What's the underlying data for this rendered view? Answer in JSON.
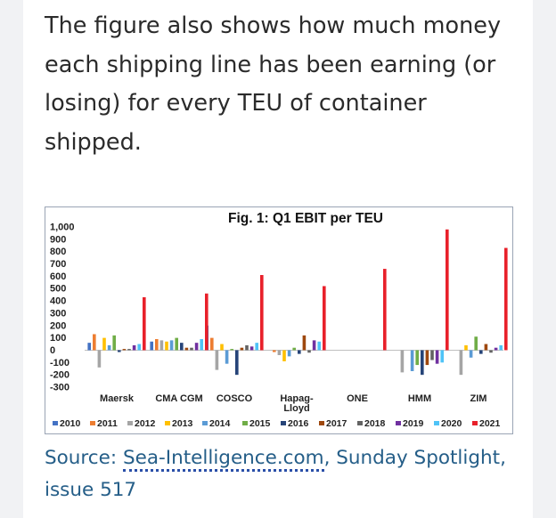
{
  "article": {
    "paragraph": "The figure also shows how much money each shipping line has been earning (or losing) for every TEU of container shipped.",
    "source_prefix": "Source:",
    "source_link": "Sea-Intelligence.com",
    "source_suffix": ", Sunday Spotlight, issue 517"
  },
  "colors": {
    "2010": "#4472c4",
    "2011": "#ed7d31",
    "2012": "#a5a5a5",
    "2013": "#ffc000",
    "2014": "#5b9bd5",
    "2015": "#70ad47",
    "2016": "#264478",
    "2017": "#9e480e",
    "2018": "#636363",
    "2019": "#7030a0",
    "2020": "#4fc3f7",
    "2021": "#e8202a"
  },
  "chart_data": {
    "type": "bar",
    "title": "Fig. 1: Q1 EBIT per TEU",
    "xlabel": "",
    "ylabel": "",
    "ylim": [
      -300,
      1000
    ],
    "yticks": [
      "1,000",
      "900",
      "800",
      "700",
      "600",
      "500",
      "400",
      "300",
      "200",
      "100",
      "0",
      "-100",
      "-200",
      "-300"
    ],
    "ytick_values": [
      1000,
      900,
      800,
      700,
      600,
      500,
      400,
      300,
      200,
      100,
      0,
      -100,
      -200,
      -300
    ],
    "categories": [
      "Maersk",
      "CMA CGM",
      "COSCO",
      "Hapag-Lloyd",
      "ONE",
      "HMM",
      "ZIM"
    ],
    "category_lines": [
      [
        "Maersk"
      ],
      [
        "CMA CGM"
      ],
      [
        "COSCO"
      ],
      [
        "Hapag-",
        "Lloyd"
      ],
      [
        "ONE"
      ],
      [
        "HMM"
      ],
      [
        "ZIM"
      ]
    ],
    "legend_position": "bottom",
    "grid": false,
    "series": [
      {
        "name": "2010",
        "values": [
          60,
          70,
          200,
          null,
          null,
          null,
          null
        ]
      },
      {
        "name": "2011",
        "values": [
          130,
          90,
          100,
          -15,
          null,
          null,
          null
        ]
      },
      {
        "name": "2012",
        "values": [
          -140,
          80,
          -160,
          -40,
          null,
          -180,
          -200
        ]
      },
      {
        "name": "2013",
        "values": [
          100,
          70,
          50,
          -90,
          null,
          null,
          40
        ]
      },
      {
        "name": "2014",
        "values": [
          40,
          80,
          -110,
          -50,
          null,
          -170,
          -60
        ]
      },
      {
        "name": "2015",
        "values": [
          120,
          100,
          10,
          20,
          null,
          -120,
          110
        ]
      },
      {
        "name": "2016",
        "values": [
          -15,
          60,
          -200,
          -30,
          null,
          -200,
          -30
        ]
      },
      {
        "name": "2017",
        "values": [
          10,
          20,
          20,
          120,
          null,
          -120,
          50
        ]
      },
      {
        "name": "2018",
        "values": [
          10,
          20,
          40,
          -20,
          null,
          -80,
          -20
        ]
      },
      {
        "name": "2019",
        "values": [
          40,
          60,
          30,
          80,
          null,
          -110,
          20
        ]
      },
      {
        "name": "2020",
        "values": [
          50,
          90,
          60,
          70,
          null,
          -100,
          40
        ]
      },
      {
        "name": "2021",
        "values": [
          430,
          460,
          610,
          520,
          660,
          980,
          830
        ]
      }
    ]
  }
}
